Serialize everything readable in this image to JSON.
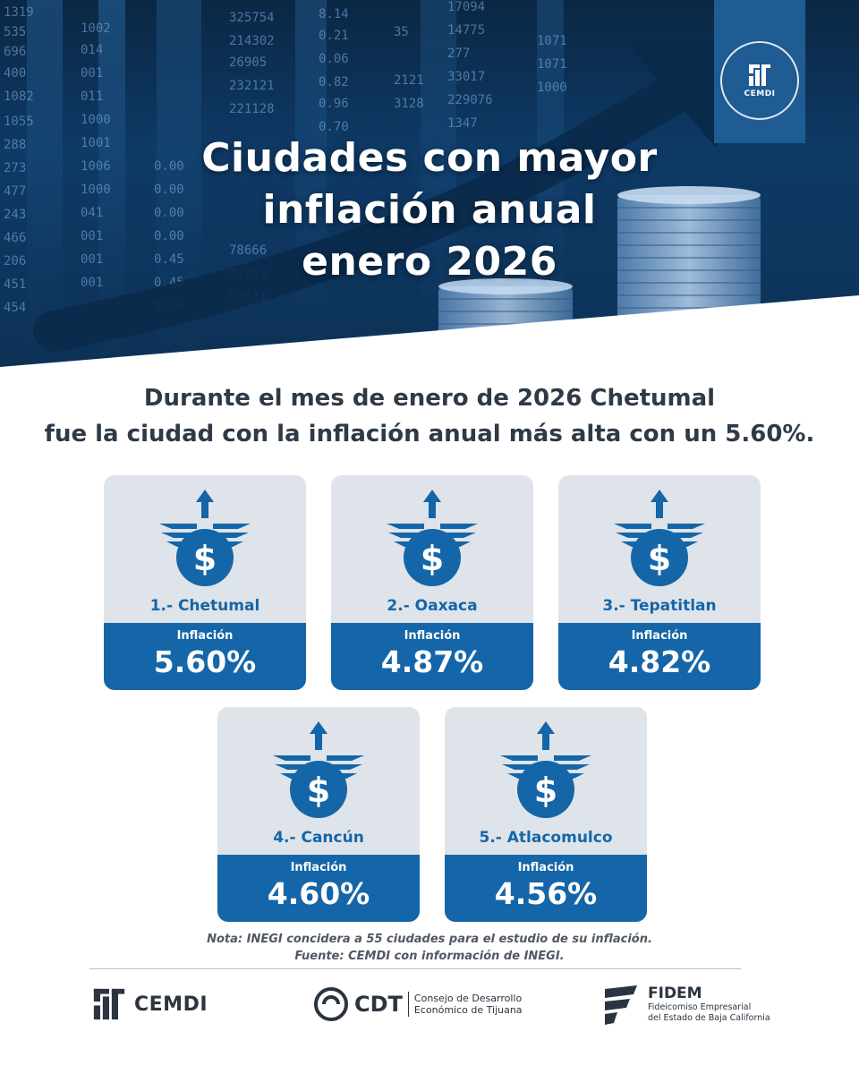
{
  "hero": {
    "title_lines": [
      "Ciudades con mayor",
      "inflación anual",
      "enero 2026"
    ],
    "badge_label": "CEMDI"
  },
  "intro": {
    "line1": "Durante el mes de enero de 2026 Chetumal",
    "line2": "fue la ciudad con la inflación anual más alta con un 5.60%."
  },
  "cards": [
    {
      "name": "1.- Chetumal",
      "label": "Inflación",
      "value": "5.60%"
    },
    {
      "name": "2.- Oaxaca",
      "label": "Inflación",
      "value": "4.87%"
    },
    {
      "name": "3.- Tepatitlan",
      "label": "Inflación",
      "value": "4.82%"
    },
    {
      "name": "4.- Cancún",
      "label": "Inflación",
      "value": "4.60%"
    },
    {
      "name": "5.- Atlacomulco",
      "label": "Inflación",
      "value": "4.56%"
    }
  ],
  "notes": {
    "nota": "Nota: INEGI concidera a 55 ciudades para el estudio de su inflación.",
    "fuente": "Fuente: CEMDI con información de INEGI."
  },
  "footer": {
    "cemdi": "CEMDI",
    "cdt": "CDT",
    "cdt_full_1": "Consejo de Desarrollo",
    "cdt_full_2": "Económico de Tijuana",
    "fidem": "FIDEM",
    "fidem_full_1": "Fideicomiso Empresarial",
    "fidem_full_2": "del Estado de Baja California"
  },
  "colors": {
    "primary_blue": "#1466a8",
    "card_bg": "#dfe3ea",
    "hero_dark": "#0b2744"
  },
  "icons": [
    "dollar-coin-rising-icon",
    "dollar-sign-icon",
    "arrow-up-icon"
  ]
}
